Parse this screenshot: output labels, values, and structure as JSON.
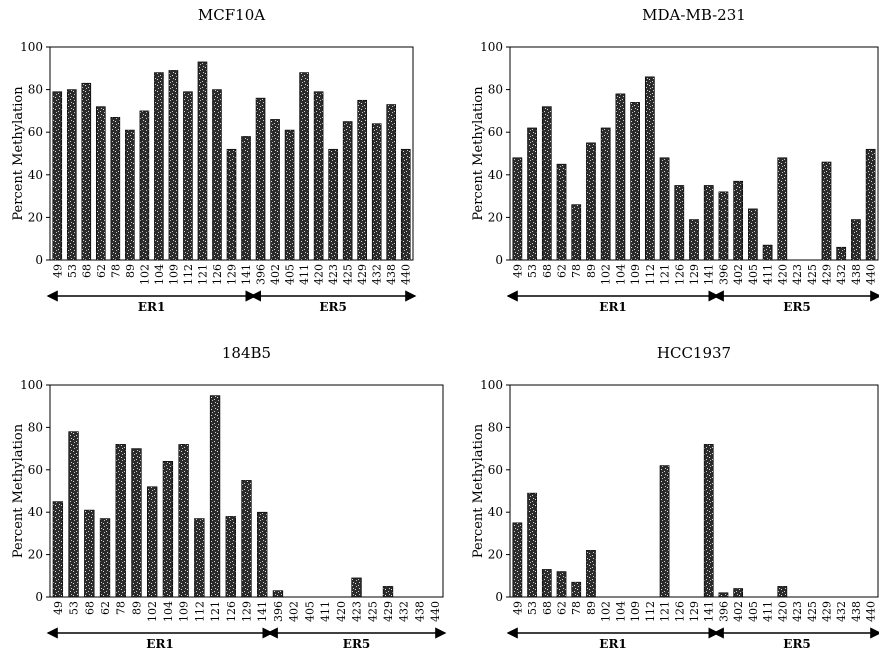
{
  "chart_data": [
    {
      "type": "bar",
      "title": "MCF10A",
      "ylabel": "Percent Methylation",
      "xlabel": "",
      "ylim": [
        0,
        100
      ],
      "yticks": [
        "0",
        "20",
        "40",
        "60",
        "80",
        "100"
      ],
      "categories": [
        "49",
        "53",
        "68",
        "62",
        "78",
        "89",
        "102",
        "104",
        "109",
        "112",
        "121",
        "126",
        "129",
        "141",
        "396",
        "402",
        "405",
        "411",
        "420",
        "423",
        "425",
        "429",
        "432",
        "438",
        "440"
      ],
      "values": [
        79,
        80,
        83,
        72,
        67,
        61,
        70,
        88,
        89,
        79,
        93,
        80,
        52,
        58,
        76,
        66,
        61,
        88,
        79,
        52,
        65,
        75,
        64,
        73,
        52
      ],
      "groups": [
        {
          "label": "ER1",
          "from": 0,
          "to": 13
        },
        {
          "label": "ER5",
          "from": 14,
          "to": 24
        }
      ],
      "grid": false
    },
    {
      "type": "bar",
      "title": "MDA-MB-231",
      "ylabel": "Percent Methylation",
      "xlabel": "",
      "ylim": [
        0,
        100
      ],
      "yticks": [
        "0",
        "20",
        "40",
        "60",
        "80",
        "100"
      ],
      "categories": [
        "49",
        "53",
        "68",
        "62",
        "78",
        "89",
        "102",
        "104",
        "109",
        "112",
        "121",
        "126",
        "129",
        "141",
        "396",
        "402",
        "405",
        "411",
        "420",
        "423",
        "425",
        "429",
        "432",
        "438",
        "440"
      ],
      "values": [
        48,
        62,
        72,
        45,
        26,
        55,
        62,
        78,
        74,
        86,
        48,
        35,
        19,
        35,
        32,
        37,
        24,
        7,
        48,
        0,
        0,
        46,
        6,
        19,
        52
      ],
      "groups": [
        {
          "label": "ER1",
          "from": 0,
          "to": 13
        },
        {
          "label": "ER5",
          "from": 14,
          "to": 24
        }
      ],
      "grid": false
    },
    {
      "type": "bar",
      "title": "184B5",
      "ylabel": "Percent Methylation",
      "xlabel": "",
      "ylim": [
        0,
        100
      ],
      "yticks": [
        "0",
        "20",
        "40",
        "60",
        "80",
        "100"
      ],
      "categories": [
        "49",
        "53",
        "68",
        "62",
        "78",
        "89",
        "102",
        "104",
        "109",
        "112",
        "121",
        "126",
        "129",
        "141",
        "396",
        "402",
        "405",
        "411",
        "420",
        "423",
        "425",
        "429",
        "432",
        "438",
        "440"
      ],
      "values": [
        45,
        78,
        41,
        37,
        72,
        70,
        52,
        64,
        72,
        37,
        95,
        38,
        55,
        40,
        3,
        0,
        0,
        0,
        0,
        9,
        0,
        5,
        0,
        0,
        0
      ],
      "groups": [
        {
          "label": "ER1",
          "from": 0,
          "to": 13
        },
        {
          "label": "ER5",
          "from": 14,
          "to": 24
        }
      ],
      "grid": false
    },
    {
      "type": "bar",
      "title": "HCC1937",
      "ylabel": "Percent Methylation",
      "xlabel": "",
      "ylim": [
        0,
        100
      ],
      "yticks": [
        "0",
        "20",
        "40",
        "60",
        "80",
        "100"
      ],
      "categories": [
        "49",
        "53",
        "68",
        "62",
        "78",
        "89",
        "102",
        "104",
        "109",
        "112",
        "121",
        "126",
        "129",
        "141",
        "396",
        "402",
        "405",
        "411",
        "420",
        "423",
        "425",
        "429",
        "432",
        "438",
        "440"
      ],
      "values": [
        35,
        49,
        13,
        12,
        7,
        22,
        0,
        0,
        0,
        0,
        62,
        0,
        0,
        72,
        2,
        4,
        0,
        0,
        5,
        0,
        0,
        0,
        0,
        0,
        0
      ],
      "groups": [
        {
          "label": "ER1",
          "from": 0,
          "to": 13
        },
        {
          "label": "ER5",
          "from": 14,
          "to": 24
        }
      ],
      "grid": false
    }
  ],
  "colors": {
    "bar_dark": "#2b2b2b",
    "bar_light": "#d9d9d9",
    "axis": "#000000"
  }
}
